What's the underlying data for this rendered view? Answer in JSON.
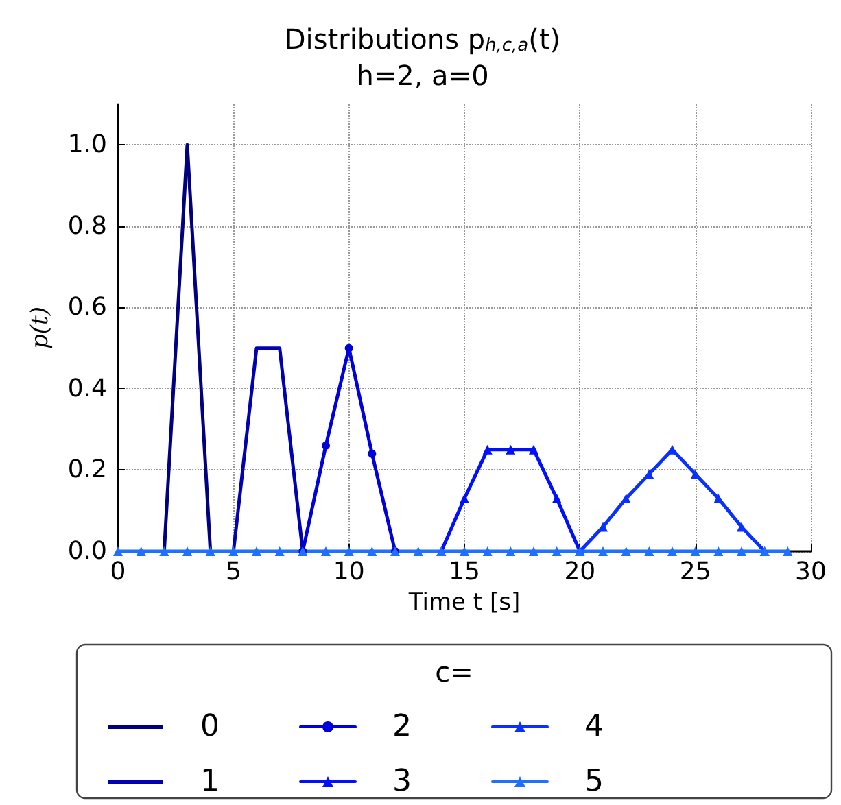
{
  "chart_data": {
    "type": "line",
    "title": "Distributions p$_{h,c,a}$(t)",
    "subtitle": "h=2, a=0",
    "xlabel": "Time t [s]",
    "ylabel": "p(t)",
    "legend_title": "c=",
    "legend": "bottom",
    "x": [
      0,
      1,
      2,
      3,
      4,
      5,
      6,
      7,
      8,
      9,
      10,
      11,
      12,
      13,
      14,
      15,
      16,
      17,
      18,
      19,
      20,
      21,
      22,
      23,
      24,
      25,
      26,
      27,
      28,
      29
    ],
    "series": [
      {
        "name": "0",
        "color": "#000080",
        "marker": "none",
        "values": [
          null,
          null,
          0,
          1,
          0,
          null,
          null,
          null,
          null,
          null,
          null,
          null,
          null,
          null,
          null,
          null,
          null,
          null,
          null,
          null,
          null,
          null,
          null,
          null,
          null,
          null,
          null,
          null,
          null,
          null
        ]
      },
      {
        "name": "1",
        "color": "#0000b4",
        "marker": "none",
        "values": [
          null,
          null,
          null,
          null,
          null,
          0,
          0.5,
          0.5,
          0,
          null,
          null,
          null,
          null,
          null,
          null,
          null,
          null,
          null,
          null,
          null,
          null,
          null,
          null,
          null,
          null,
          null,
          null,
          null,
          null,
          null
        ]
      },
      {
        "name": "2",
        "color": "#0000dc",
        "marker": "circle",
        "values": [
          null,
          null,
          null,
          null,
          null,
          null,
          null,
          null,
          0,
          0.26,
          0.5,
          0.24,
          0,
          null,
          null,
          null,
          null,
          null,
          null,
          null,
          null,
          null,
          null,
          null,
          null,
          null,
          null,
          null,
          null,
          null
        ]
      },
      {
        "name": "3",
        "color": "#0010ff",
        "marker": "triangle",
        "values": [
          null,
          null,
          null,
          null,
          null,
          null,
          null,
          null,
          null,
          null,
          null,
          null,
          null,
          null,
          0,
          0.13,
          0.25,
          0.25,
          0.25,
          0.13,
          0,
          null,
          null,
          null,
          null,
          null,
          null,
          null,
          null,
          null
        ]
      },
      {
        "name": "4",
        "color": "#0a30ff",
        "marker": "triangle",
        "values": [
          null,
          null,
          null,
          null,
          null,
          null,
          null,
          null,
          null,
          null,
          null,
          null,
          null,
          null,
          null,
          null,
          null,
          null,
          null,
          null,
          0,
          0.06,
          0.13,
          0.19,
          0.25,
          0.19,
          0.13,
          0.06,
          0,
          null
        ]
      },
      {
        "name": "5",
        "color": "#2070ff",
        "marker": "triangle",
        "values": [
          0,
          0,
          0,
          0,
          0,
          0,
          0,
          0,
          0,
          0,
          0,
          0,
          0,
          0,
          0,
          0,
          0,
          0,
          0,
          0,
          0,
          0,
          0,
          0,
          0,
          0,
          0,
          0,
          0,
          0
        ]
      }
    ],
    "xlim": [
      0,
      30
    ],
    "xticks": [
      0,
      5,
      10,
      15,
      20,
      25,
      30
    ],
    "ylim": [
      0,
      1.1
    ],
    "yticks": [
      {
        "value": 0,
        "label": "0.0"
      },
      0.2,
      0.4,
      0.6,
      0.8,
      {
        "value": 1,
        "label": "1.0"
      }
    ],
    "grid": true,
    "line_style": "solid"
  }
}
